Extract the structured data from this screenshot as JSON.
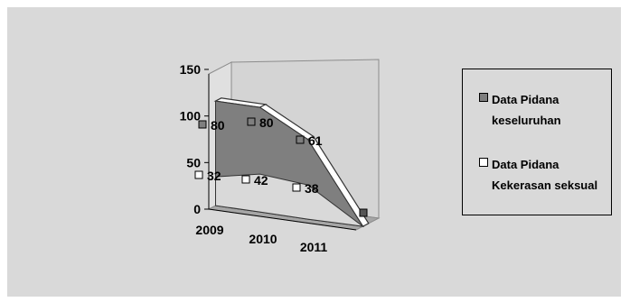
{
  "chart_data": {
    "type": "area",
    "style": "3d-area",
    "categories": [
      "2009",
      "2010",
      "2011",
      ""
    ],
    "series": [
      {
        "name": "Data Pidana keseluruhan",
        "name_lines": [
          "Data Pidana",
          "keseluruhan"
        ],
        "values": [
          80,
          80,
          61,
          0
        ],
        "data_labels": [
          "80",
          "80",
          "61",
          ""
        ],
        "color": "#7f7f7f"
      },
      {
        "name": "Data Pidana Kekerasan seksual",
        "name_lines": [
          "Data Pidana",
          "Kekerasan seksual"
        ],
        "values": [
          32,
          42,
          38,
          0
        ],
        "data_labels": [
          "32",
          "42",
          "38",
          ""
        ],
        "color": "#d9d9d9"
      }
    ],
    "yticks": [
      "0",
      "50",
      "100",
      "150"
    ],
    "ylim": [
      0,
      150
    ],
    "legend_position": "right",
    "grid": false,
    "colors": {
      "background": "#d9d9d9",
      "wall": "#d4d4d4",
      "floor": "#a6a6a6"
    }
  }
}
